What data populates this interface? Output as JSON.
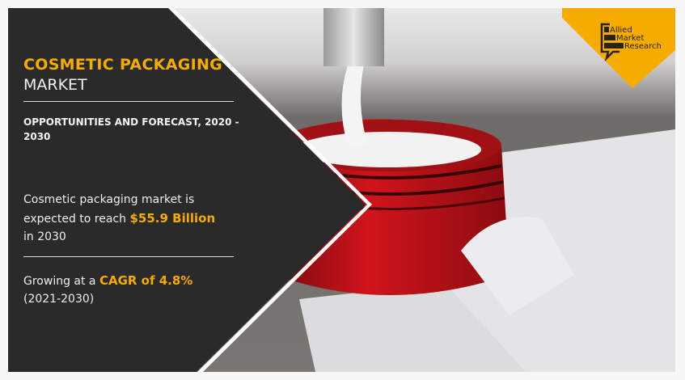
{
  "title": {
    "line1": "COSMETIC PACKAGING",
    "line2": "MARKET"
  },
  "subtitle": "OPPORTUNITIES AND FORECAST, 2020 - 2030",
  "stat1": {
    "prefix": "Cosmetic packaging market is expected to reach ",
    "value": "$55.9 Billion",
    "suffix": " in 2030"
  },
  "stat2": {
    "prefix": "Growing at a ",
    "value": "CAGR of 4.8%",
    "suffix": "(2021-2030)"
  },
  "logo": {
    "line1": "Allied",
    "line2": "Market",
    "line3": "Research"
  },
  "colors": {
    "accent": "#f5ab00",
    "panel": "#2a2a2a",
    "jar": "#c8141a"
  }
}
